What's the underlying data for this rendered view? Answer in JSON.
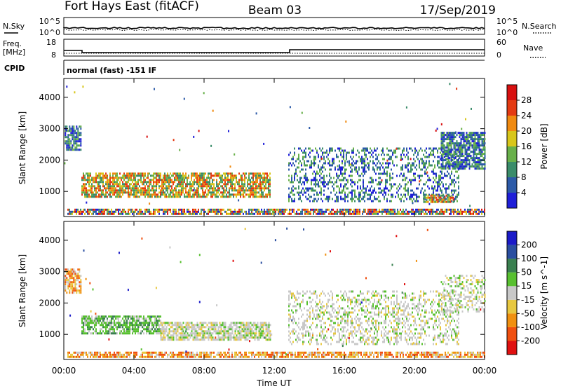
{
  "header": {
    "title_left": "Fort Hays East (fitACF)",
    "title_center": "Beam 03",
    "title_right": "17/Sep/2019"
  },
  "strips": {
    "nsky_label": "N.Sky",
    "nsearch_label": "N.Search",
    "noise_ticks_left": [
      "10^5",
      "10^0"
    ],
    "noise_ticks_right": [
      "10^5",
      "10^0"
    ],
    "freq_label_line1": "Freq.",
    "freq_label_line2": "[MHz]",
    "freq_ticks": [
      "18",
      "8"
    ],
    "nave_label": "Nave",
    "nave_ticks": [
      "60",
      "0"
    ],
    "cpid_label": "CPID",
    "cpid_text": "normal (fast) -151 IF"
  },
  "x_axis": {
    "label": "Time UT",
    "ticks": [
      "00:00",
      "04:00",
      "08:00",
      "12:00",
      "16:00",
      "20:00",
      "00:00"
    ]
  },
  "power_colorbar": {
    "label": "Power [dB]",
    "ticks": [
      "4",
      "8",
      "12",
      "16",
      "20",
      "24",
      "28"
    ],
    "colors": [
      "#1f1fd8",
      "#2c5aa8",
      "#3a8c6a",
      "#68b04a",
      "#d8c61a",
      "#f08a10",
      "#e43a12",
      "#d81010"
    ]
  },
  "velocity_colorbar": {
    "label": "Velocity [m s^-1]",
    "ticks": [
      "-200",
      "-100",
      "-50",
      "-15",
      "15",
      "50",
      "100",
      "200"
    ],
    "colors": [
      "#e01010",
      "#f05010",
      "#f09010",
      "#e8c840",
      "#c8c8c8",
      "#58c030",
      "#3a8050",
      "#2a4ea0",
      "#1a1ac8"
    ]
  },
  "chart_data": [
    {
      "type": "heatmap",
      "panel": "power",
      "ylabel": "Slant Range [km]",
      "xlabel": "",
      "y_ticks": [
        "1000",
        "2000",
        "3000",
        "4000"
      ],
      "ylim": [
        200,
        4600
      ],
      "xlim_hours": [
        0,
        24
      ],
      "regions": [
        {
          "t0": 0.05,
          "t1": 1.0,
          "r0": 2300,
          "r1": 3100,
          "level": "mid"
        },
        {
          "t0": 1.0,
          "t1": 11.8,
          "r0": 800,
          "r1": 1600,
          "level": "high"
        },
        {
          "t0": 0.2,
          "t1": 24.0,
          "r0": 250,
          "r1": 450,
          "level": "mixed"
        },
        {
          "t0": 12.8,
          "t1": 22.5,
          "r0": 700,
          "r1": 2400,
          "level": "low"
        },
        {
          "t0": 20.5,
          "t1": 22.2,
          "r0": 650,
          "r1": 900,
          "level": "high"
        },
        {
          "t0": 21.5,
          "t1": 24.0,
          "r0": 1700,
          "r1": 2900,
          "level": "mid"
        }
      ]
    },
    {
      "type": "heatmap",
      "panel": "velocity",
      "ylabel": "Slant Range [km]",
      "xlabel": "Time UT",
      "y_ticks": [
        "1000",
        "2000",
        "3000",
        "4000"
      ],
      "ylim": [
        200,
        4600
      ],
      "xlim_hours": [
        0,
        24
      ],
      "regions": [
        {
          "t0": 0.05,
          "t1": 1.0,
          "r0": 2300,
          "r1": 3100,
          "level": "neg"
        },
        {
          "t0": 1.0,
          "t1": 5.5,
          "r0": 1000,
          "r1": 1600,
          "level": "pos"
        },
        {
          "t0": 5.5,
          "t1": 11.8,
          "r0": 800,
          "r1": 1400,
          "level": "zero"
        },
        {
          "t0": 0.2,
          "t1": 24.0,
          "r0": 250,
          "r1": 450,
          "level": "neg"
        },
        {
          "t0": 12.8,
          "t1": 22.5,
          "r0": 700,
          "r1": 2400,
          "level": "zero"
        },
        {
          "t0": 21.5,
          "t1": 24.0,
          "r0": 1700,
          "r1": 2900,
          "level": "zero"
        }
      ]
    }
  ]
}
